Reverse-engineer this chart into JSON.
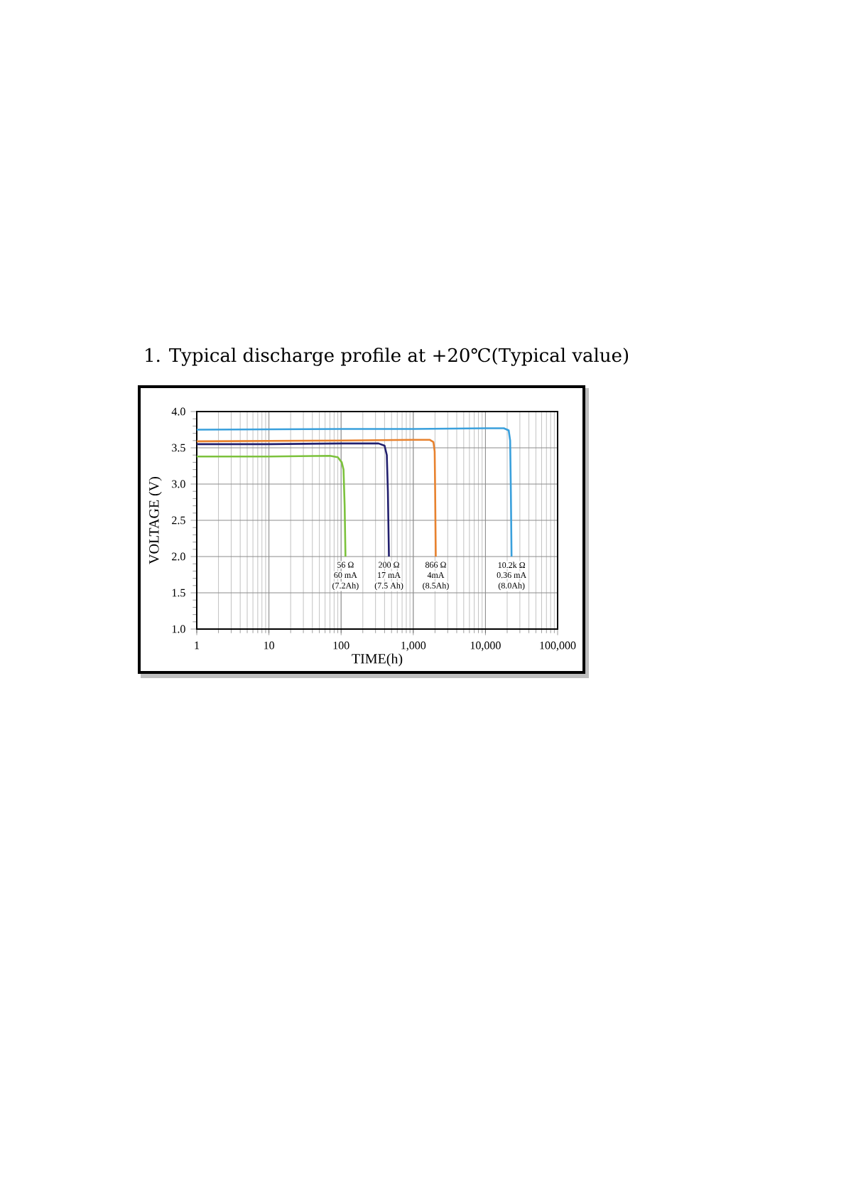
{
  "chart_data": {
    "type": "line",
    "title": "1. Typical discharge profile at +20℃(Typical value)",
    "xlabel": "TIME(h)",
    "ylabel": "VOLTAGE (V)",
    "log": "x",
    "grid": true,
    "marker": "none",
    "line_style": "solid",
    "xlim": [
      1,
      100000
    ],
    "ylim": [
      1.0,
      4.0
    ],
    "xticks": [
      1,
      10,
      100,
      {
        "value": 1000,
        "label": "1,000"
      },
      {
        "value": 10000,
        "label": "10,000"
      },
      {
        "value": 100000,
        "label": "100,000"
      }
    ],
    "yticks": [
      {
        "value": 1,
        "label": "1.0"
      },
      {
        "value": 1.5,
        "label": "1.5"
      },
      {
        "value": 2,
        "label": "2.0"
      },
      {
        "value": 2.5,
        "label": "2.5"
      },
      {
        "value": 3,
        "label": "3.0"
      },
      {
        "value": 3.5,
        "label": "3.5"
      },
      {
        "value": 4,
        "label": "4.0"
      }
    ],
    "series": [
      {
        "color": "#7cc23c",
        "x": [
          1,
          10,
          70,
          90,
          102,
          108,
          112,
          115
        ],
        "values": [
          3.38,
          3.38,
          3.39,
          3.37,
          3.3,
          3.2,
          2.7,
          2.0
        ]
      },
      {
        "color": "#22206e",
        "x": [
          1,
          10,
          100,
          330,
          400,
          430,
          445,
          460
        ],
        "values": [
          3.55,
          3.55,
          3.56,
          3.56,
          3.53,
          3.4,
          2.9,
          2.0
        ]
      },
      {
        "color": "#e8822e",
        "x": [
          1,
          100,
          1000,
          1700,
          1900,
          1980,
          2010,
          2050
        ],
        "values": [
          3.59,
          3.6,
          3.61,
          3.61,
          3.58,
          3.45,
          2.9,
          2.0
        ]
      },
      {
        "color": "#3aa0dc",
        "x": [
          1,
          100,
          1000,
          10000,
          18000,
          21000,
          22000,
          22500,
          23000
        ],
        "values": [
          3.75,
          3.76,
          3.76,
          3.77,
          3.77,
          3.74,
          3.6,
          2.9,
          2.0
        ]
      }
    ],
    "annotations": [
      "56 Ω",
      "60 mA",
      "(7.2Ah)",
      "200 Ω",
      "17 mA",
      "(7.5 Ah)",
      "866 Ω",
      "4mA",
      "(8.5Ah)",
      "10.2k Ω",
      "0.36 mA",
      "(8.0Ah)"
    ]
  }
}
